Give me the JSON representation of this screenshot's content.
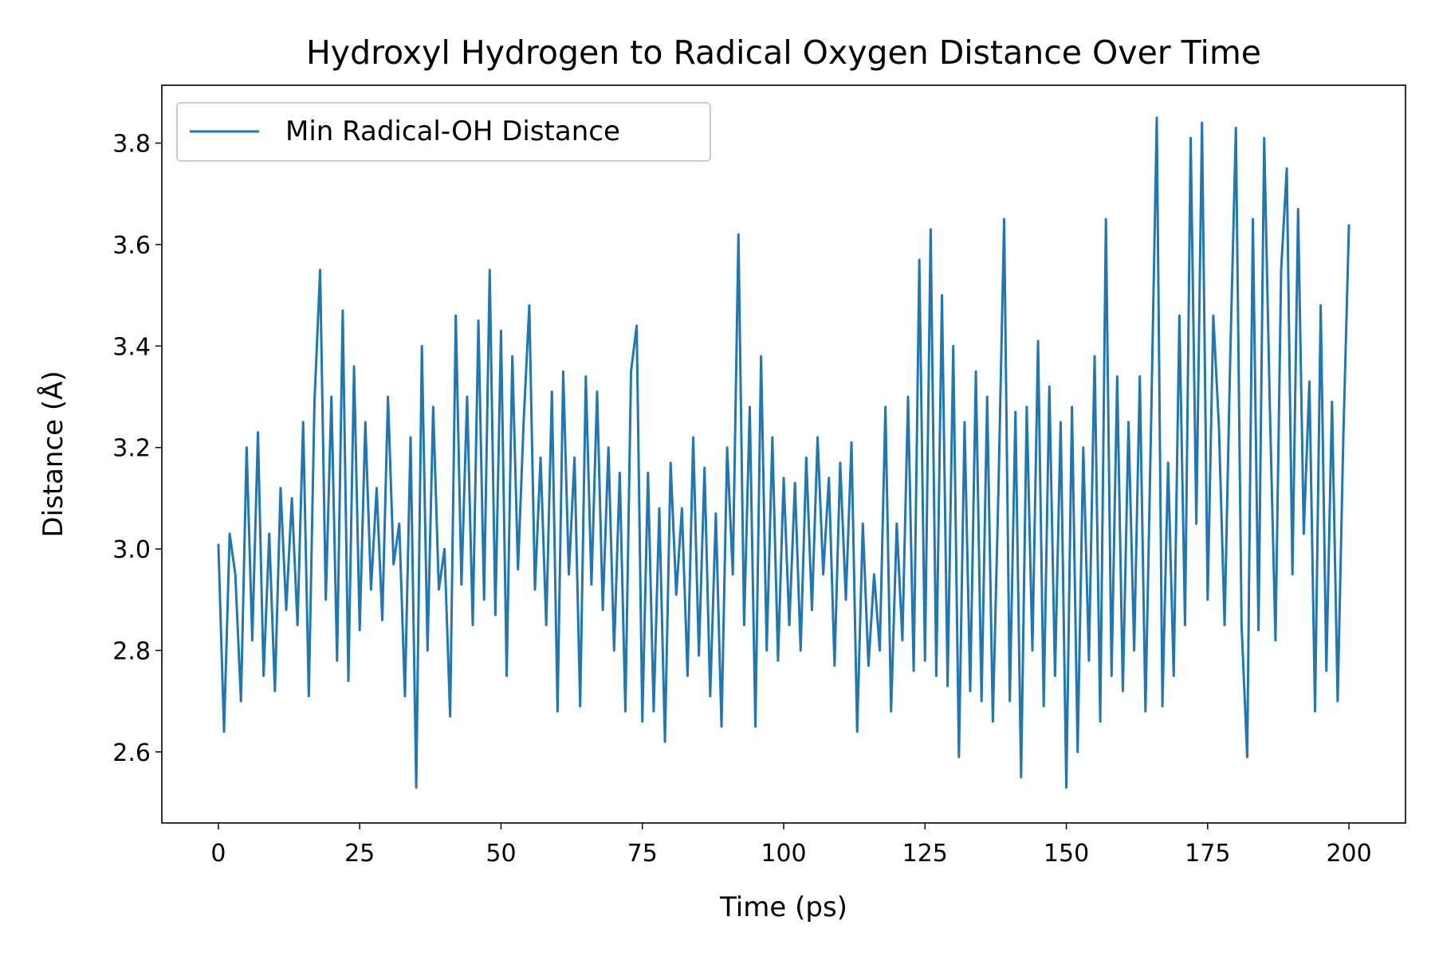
{
  "chart_data": {
    "type": "line",
    "title": "Hydroxyl Hydrogen to Radical Oxygen Distance Over Time",
    "x_label": "Time (ps)",
    "y_label": "Distance (Å)",
    "legend": "upper left",
    "x": [
      0,
      1,
      2,
      3,
      4,
      5,
      6,
      7,
      8,
      9,
      10,
      11,
      12,
      13,
      14,
      15,
      16,
      17,
      18,
      19,
      20,
      21,
      22,
      23,
      24,
      25,
      26,
      27,
      28,
      29,
      30,
      31,
      32,
      33,
      34,
      35,
      36,
      37,
      38,
      39,
      40,
      41,
      42,
      43,
      44,
      45,
      46,
      47,
      48,
      49,
      50,
      51,
      52,
      53,
      54,
      55,
      56,
      57,
      58,
      59,
      60,
      61,
      62,
      63,
      64,
      65,
      66,
      67,
      68,
      69,
      70,
      71,
      72,
      73,
      74,
      75,
      76,
      77,
      78,
      79,
      80,
      81,
      82,
      83,
      84,
      85,
      86,
      87,
      88,
      89,
      90,
      91,
      92,
      93,
      94,
      95,
      96,
      97,
      98,
      99,
      100,
      101,
      102,
      103,
      104,
      105,
      106,
      107,
      108,
      109,
      110,
      111,
      112,
      113,
      114,
      115,
      116,
      117,
      118,
      119,
      120,
      121,
      122,
      123,
      124,
      125,
      126,
      127,
      128,
      129,
      130,
      131,
      132,
      133,
      134,
      135,
      136,
      137,
      138,
      139,
      140,
      141,
      142,
      143,
      144,
      145,
      146,
      147,
      148,
      149,
      150,
      151,
      152,
      153,
      154,
      155,
      156,
      157,
      158,
      159,
      160,
      161,
      162,
      163,
      164,
      165,
      166,
      167,
      168,
      169,
      170,
      171,
      172,
      173,
      174,
      175,
      176,
      177,
      178,
      179,
      180,
      181,
      182,
      183,
      184,
      185,
      186,
      187,
      188,
      189,
      190,
      191,
      192,
      193,
      194,
      195,
      196,
      197,
      198,
      199,
      200
    ],
    "series": [
      {
        "name": "Min Radical-OH Distance",
        "color": "#1f77b4",
        "values": [
          3.01,
          2.64,
          3.03,
          2.95,
          2.7,
          3.2,
          2.82,
          3.23,
          2.75,
          3.03,
          2.72,
          3.12,
          2.88,
          3.1,
          2.85,
          3.25,
          2.71,
          3.29,
          3.55,
          2.9,
          3.3,
          2.78,
          3.47,
          2.74,
          3.36,
          2.84,
          3.25,
          2.92,
          3.12,
          2.86,
          3.3,
          2.97,
          3.05,
          2.71,
          3.22,
          2.53,
          3.4,
          2.8,
          3.28,
          2.92,
          3.0,
          2.67,
          3.46,
          2.93,
          3.3,
          2.85,
          3.45,
          2.9,
          3.55,
          2.87,
          3.43,
          2.75,
          3.38,
          2.96,
          3.25,
          3.48,
          2.92,
          3.18,
          2.85,
          3.31,
          2.68,
          3.35,
          2.95,
          3.18,
          2.69,
          3.34,
          2.93,
          3.31,
          2.88,
          3.2,
          2.8,
          3.15,
          2.68,
          3.35,
          3.44,
          2.66,
          3.15,
          2.68,
          3.08,
          2.62,
          3.17,
          2.91,
          3.08,
          2.75,
          3.22,
          2.79,
          3.16,
          2.71,
          3.07,
          2.65,
          3.2,
          2.95,
          3.62,
          2.85,
          3.28,
          2.65,
          3.38,
          2.8,
          3.22,
          2.78,
          3.14,
          2.85,
          3.13,
          2.8,
          3.18,
          2.88,
          3.22,
          2.95,
          3.14,
          2.77,
          3.17,
          2.9,
          3.21,
          2.64,
          3.05,
          2.77,
          2.95,
          2.8,
          3.28,
          2.68,
          3.05,
          2.82,
          3.3,
          2.76,
          3.57,
          2.78,
          3.63,
          2.75,
          3.5,
          2.73,
          3.4,
          2.59,
          3.25,
          2.72,
          3.35,
          2.7,
          3.3,
          2.66,
          3.12,
          3.65,
          2.7,
          3.27,
          2.55,
          3.28,
          2.8,
          3.41,
          2.69,
          3.32,
          2.75,
          3.25,
          2.53,
          3.28,
          2.6,
          3.2,
          2.78,
          3.38,
          2.66,
          3.65,
          2.75,
          3.34,
          2.72,
          3.25,
          2.8,
          3.34,
          2.68,
          3.25,
          3.85,
          2.69,
          3.17,
          2.75,
          3.46,
          2.85,
          3.81,
          3.05,
          3.84,
          2.9,
          3.46,
          3.24,
          2.85,
          3.38,
          3.83,
          2.85,
          2.59,
          3.65,
          2.84,
          3.81,
          3.28,
          2.82,
          3.55,
          3.75,
          2.95,
          3.67,
          3.03,
          3.33,
          2.68,
          3.48,
          2.76,
          3.29,
          2.7,
          3.22,
          3.64
        ]
      }
    ],
    "xlim": [
      -10,
      210
    ],
    "xticks": [
      0,
      25,
      50,
      75,
      100,
      125,
      150,
      175,
      200
    ],
    "ylim": [
      2.46,
      3.914
    ],
    "yticks": [
      2.6,
      2.8,
      {
        "value": 3,
        "label": "3.0"
      },
      3.2,
      3.4,
      3.6,
      3.8
    ]
  }
}
